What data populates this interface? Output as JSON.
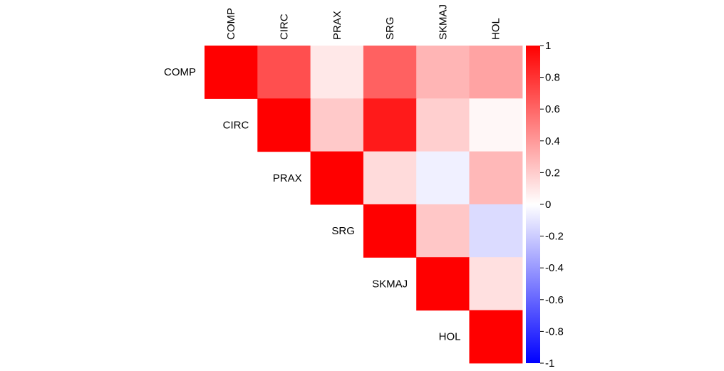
{
  "chart_data": {
    "type": "heatmap",
    "variables": [
      "COMP",
      "CIRC",
      "PRAX",
      "SRG",
      "SKMAJ",
      "HOL"
    ],
    "matrix": [
      [
        1.0,
        0.69,
        0.09,
        0.62,
        0.29,
        0.36
      ],
      [
        0.69,
        1.0,
        0.21,
        0.9,
        0.19,
        0.03
      ],
      [
        0.09,
        0.21,
        1.0,
        0.14,
        -0.06,
        0.28
      ],
      [
        0.62,
        0.9,
        0.14,
        1.0,
        0.22,
        -0.14
      ],
      [
        0.29,
        0.19,
        -0.06,
        0.22,
        1.0,
        0.12
      ],
      [
        0.36,
        0.03,
        0.28,
        -0.14,
        0.12,
        1.0
      ]
    ],
    "layout": "upper-triangle",
    "color_scale": {
      "range": [
        -1,
        1
      ],
      "low": "#0000FF",
      "mid": "#FFFFFF",
      "high": "#FF0000",
      "ticks": [
        1,
        0.8,
        0.6,
        0.4,
        0.2,
        0,
        -0.2,
        -0.4,
        -0.6,
        -0.8,
        -1
      ],
      "tick_labels": [
        "1",
        "0.8",
        "0.6",
        "0.4",
        "0.2",
        "0",
        "-0.2",
        "-0.4",
        "-0.6",
        "-0.8",
        "-1"
      ]
    },
    "legend_placement": "right",
    "grid": false
  }
}
